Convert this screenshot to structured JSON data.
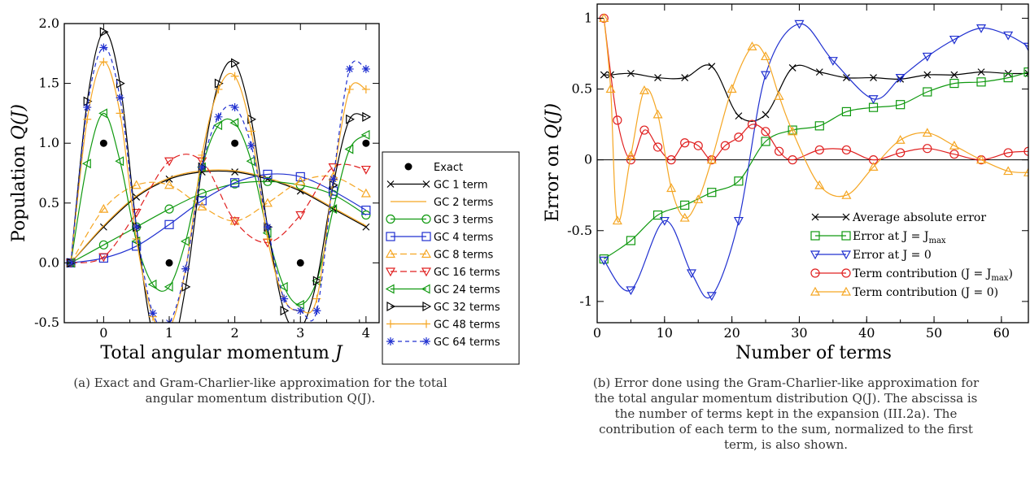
{
  "chart_data": [
    {
      "type": "line",
      "xlabel": "Total angular momentum ",
      "xlabel_var": "J",
      "ylabel": "Population ",
      "ylabel_var": "Q(J)",
      "xlim": [
        -0.6,
        4.2
      ],
      "ylim": [
        -0.5,
        2.0
      ],
      "xticks": [
        0,
        1,
        2,
        3,
        4
      ],
      "yticks": [
        -0.5,
        0.0,
        0.5,
        1.0,
        1.5,
        2.0
      ],
      "ytick_labels": [
        "-0.5",
        "0.0",
        "0.5",
        "1.0",
        "1.5",
        "2.0"
      ],
      "legend_position": "right-outside",
      "exact": {
        "name": "Exact",
        "x": [
          0,
          1,
          2,
          3,
          4
        ],
        "y": [
          1.0,
          0.0,
          1.0,
          0.0,
          1.0
        ]
      },
      "series": [
        {
          "name": "GC 1 term",
          "color": "#000000",
          "marker": "x",
          "dash": "",
          "x": [
            -0.5,
            0,
            0.5,
            1,
            1.5,
            2,
            2.5,
            3,
            3.5,
            4
          ],
          "y": [
            0.0,
            0.3,
            0.55,
            0.7,
            0.76,
            0.76,
            0.7,
            0.6,
            0.45,
            0.3
          ]
        },
        {
          "name": "GC 2 terms",
          "color": "#f5a623",
          "marker": "none",
          "dash": "",
          "x": [
            -0.5,
            0,
            0.5,
            1,
            1.5,
            2,
            2.5,
            3,
            3.5,
            4
          ],
          "y": [
            0.0,
            0.31,
            0.56,
            0.71,
            0.77,
            0.77,
            0.71,
            0.61,
            0.46,
            0.31
          ]
        },
        {
          "name": "GC 3 terms",
          "color": "#109910",
          "marker": "circle",
          "dash": "",
          "x": [
            -0.5,
            0,
            0.5,
            1,
            1.5,
            2,
            2.5,
            3,
            3.5,
            4
          ],
          "y": [
            0.0,
            0.15,
            0.3,
            0.45,
            0.58,
            0.66,
            0.68,
            0.65,
            0.57,
            0.4
          ]
        },
        {
          "name": "GC 4 terms",
          "color": "#2030d0",
          "marker": "square",
          "dash": "",
          "x": [
            -0.5,
            0,
            0.5,
            1,
            1.5,
            2,
            2.5,
            3,
            3.5,
            4
          ],
          "y": [
            0.0,
            0.04,
            0.14,
            0.32,
            0.52,
            0.67,
            0.74,
            0.72,
            0.6,
            0.44
          ]
        },
        {
          "name": "GC 8 terms",
          "color": "#f5a623",
          "marker": "tri-up",
          "dash": "8,4",
          "x": [
            -0.5,
            0,
            0.5,
            1,
            1.5,
            2,
            2.5,
            3,
            3.5,
            4
          ],
          "y": [
            0.0,
            0.45,
            0.65,
            0.65,
            0.47,
            0.35,
            0.5,
            0.68,
            0.72,
            0.58
          ]
        },
        {
          "name": "GC 16 terms",
          "color": "#e02020",
          "marker": "tri-down",
          "dash": "8,4",
          "x": [
            -0.5,
            0,
            0.5,
            1,
            1.5,
            2,
            2.5,
            3,
            3.5,
            4
          ],
          "y": [
            0.0,
            0.05,
            0.42,
            0.85,
            0.85,
            0.35,
            0.17,
            0.4,
            0.8,
            0.78
          ]
        },
        {
          "name": "GC 24 terms",
          "color": "#109910",
          "marker": "tri-left",
          "dash": "",
          "x": [
            -0.5,
            -0.25,
            0,
            0.25,
            0.5,
            0.75,
            1,
            1.25,
            1.5,
            1.75,
            2,
            2.25,
            2.5,
            2.75,
            3,
            3.25,
            3.5,
            3.75,
            4
          ],
          "y": [
            0.0,
            0.83,
            1.25,
            0.85,
            0.18,
            -0.18,
            -0.2,
            0.18,
            0.8,
            1.15,
            1.17,
            0.85,
            0.25,
            -0.2,
            -0.35,
            -0.15,
            0.45,
            0.95,
            1.07
          ]
        },
        {
          "name": "GC 32 terms",
          "color": "#000000",
          "marker": "tri-right",
          "dash": "",
          "x": [
            -0.5,
            -0.25,
            0,
            0.25,
            0.5,
            0.75,
            1,
            1.25,
            1.5,
            1.75,
            2,
            2.25,
            2.5,
            2.75,
            3,
            3.25,
            3.5,
            3.75,
            4
          ],
          "y": [
            0.0,
            1.35,
            1.93,
            1.5,
            0.3,
            -0.6,
            -0.8,
            -0.2,
            0.8,
            1.5,
            1.67,
            1.2,
            0.3,
            -0.4,
            -0.55,
            -0.15,
            0.65,
            1.2,
            1.22
          ]
        },
        {
          "name": "GC 48 terms",
          "color": "#f5a623",
          "marker": "plus",
          "dash": "",
          "x": [
            -0.5,
            -0.25,
            0,
            0.25,
            0.5,
            0.75,
            1,
            1.25,
            1.5,
            1.75,
            2,
            2.25,
            2.5,
            2.75,
            3,
            3.25,
            3.5,
            3.75,
            4
          ],
          "y": [
            0.0,
            1.2,
            1.68,
            1.25,
            0.2,
            -0.45,
            -0.55,
            -0.05,
            0.9,
            1.45,
            1.56,
            1.1,
            0.2,
            -0.3,
            -0.4,
            -0.3,
            0.7,
            1.45,
            1.45
          ]
        },
        {
          "name": "GC 64 terms",
          "color": "#2030d0",
          "marker": "star",
          "dash": "5,4",
          "x": [
            -0.5,
            -0.25,
            0,
            0.25,
            0.5,
            0.75,
            1,
            1.25,
            1.5,
            1.75,
            2,
            2.25,
            2.5,
            2.75,
            3,
            3.25,
            3.5,
            3.75,
            4
          ],
          "y": [
            0.0,
            1.3,
            1.8,
            1.38,
            0.3,
            -0.42,
            -0.5,
            -0.05,
            0.8,
            1.22,
            1.3,
            0.98,
            0.3,
            -0.3,
            -0.4,
            -0.4,
            0.7,
            1.62,
            1.62
          ]
        }
      ]
    },
    {
      "type": "line",
      "xlabel": "Number of terms",
      "ylabel": "Error on ",
      "ylabel_var": "Q(J)",
      "xlim": [
        0,
        64
      ],
      "ylim": [
        -1.15,
        1.1
      ],
      "xticks": [
        0,
        10,
        20,
        30,
        40,
        50,
        60
      ],
      "yticks": [
        -1,
        -0.5,
        0,
        0.5,
        1
      ],
      "ytick_labels": [
        "-1",
        "-0.5",
        "0",
        "0.5",
        "1"
      ],
      "zero_line": true,
      "legend_position": "bottom-right",
      "series": [
        {
          "name": "Average absolute error",
          "color": "#000000",
          "marker": "x",
          "x": [
            1,
            2,
            5,
            9,
            13,
            17,
            21,
            25,
            29,
            33,
            37,
            41,
            45,
            49,
            53,
            57,
            61,
            64
          ],
          "y": [
            0.6,
            0.6,
            0.61,
            0.58,
            0.58,
            0.66,
            0.31,
            0.32,
            0.65,
            0.62,
            0.58,
            0.58,
            0.57,
            0.6,
            0.6,
            0.62,
            0.61,
            0.61
          ]
        },
        {
          "name": "Error at J = J",
          "sub": "max",
          "color": "#109910",
          "marker": "square",
          "x": [
            1,
            5,
            9,
            13,
            17,
            21,
            25,
            29,
            33,
            37,
            41,
            45,
            49,
            53,
            57,
            61,
            64
          ],
          "y": [
            -0.7,
            -0.57,
            -0.39,
            -0.32,
            -0.23,
            -0.15,
            0.13,
            0.21,
            0.24,
            0.34,
            0.37,
            0.39,
            0.48,
            0.54,
            0.55,
            0.58,
            0.62
          ]
        },
        {
          "name": "Error at J = 0",
          "color": "#2030d0",
          "marker": "tri-down",
          "x": [
            1,
            5,
            10,
            14,
            17,
            21,
            25,
            30,
            35,
            41,
            45,
            49,
            53,
            57,
            61,
            64
          ],
          "y": [
            -0.71,
            -0.92,
            -0.43,
            -0.8,
            -0.96,
            -0.43,
            0.6,
            0.96,
            0.7,
            0.43,
            0.58,
            0.73,
            0.85,
            0.93,
            0.88,
            0.8
          ]
        },
        {
          "name": "Term contribution (J = J",
          "sub": "max",
          "tail": ")",
          "color": "#e02020",
          "marker": "circle",
          "x": [
            1,
            3,
            5,
            7,
            9,
            11,
            13,
            15,
            17,
            19,
            21,
            23,
            25,
            27,
            29,
            33,
            37,
            41,
            45,
            49,
            53,
            57,
            61,
            64
          ],
          "y": [
            1.0,
            0.28,
            0.0,
            0.21,
            0.09,
            0.0,
            0.12,
            0.1,
            0.0,
            0.1,
            0.16,
            0.25,
            0.2,
            0.06,
            0.0,
            0.07,
            0.07,
            0.0,
            0.05,
            0.08,
            0.04,
            0.0,
            0.05,
            0.06
          ]
        },
        {
          "name": "Term contribution (J = 0)",
          "color": "#f5a623",
          "marker": "tri-up",
          "x": [
            1,
            2,
            3,
            5,
            7,
            9,
            11,
            13,
            15,
            17,
            20,
            23,
            25,
            27,
            29,
            33,
            37,
            41,
            45,
            49,
            53,
            57,
            61,
            64
          ],
          "y": [
            1.0,
            0.5,
            -0.43,
            0.03,
            0.49,
            0.32,
            -0.2,
            -0.41,
            -0.28,
            0.0,
            0.5,
            0.8,
            0.73,
            0.45,
            0.2,
            -0.18,
            -0.25,
            -0.05,
            0.14,
            0.19,
            0.1,
            0.0,
            -0.08,
            -0.09
          ]
        }
      ]
    }
  ],
  "captions": {
    "a": "(a) Exact and Gram-Charlier-like approximation for the total\nangular momentum distribution Q(J).",
    "b": "(b) Error done using the Gram-Charlier-like approximation for\nthe total angular momentum distribution Q(J). The abscissa is\nthe number of terms kept in the expansion (III.2a). The\ncontribution of each term to the sum, normalized to the first\nterm, is also shown."
  }
}
